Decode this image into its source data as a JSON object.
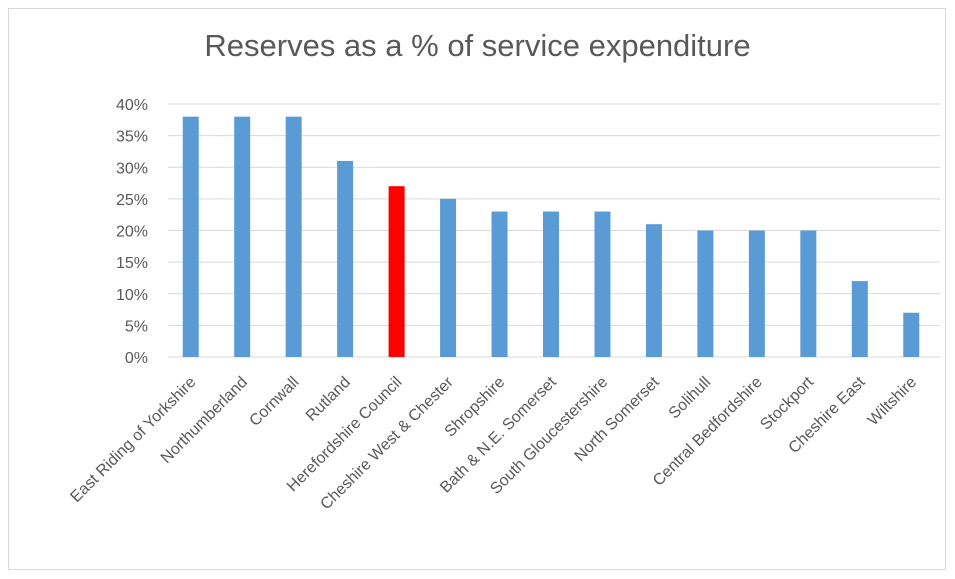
{
  "chart_data": {
    "type": "bar",
    "title": "Reserves as a % of service expenditure",
    "xlabel": "",
    "ylabel": "",
    "ylim": [
      0,
      40
    ],
    "yticks": [
      "0%",
      "5%",
      "10%",
      "15%",
      "20%",
      "25%",
      "30%",
      "35%",
      "40%"
    ],
    "ytick_values": [
      0,
      5,
      10,
      15,
      20,
      25,
      30,
      35,
      40
    ],
    "grid": true,
    "legend": "none",
    "categories": [
      "East Riding of Yorkshire",
      "Northumberland",
      "Cornwall",
      "Rutland",
      "Herefordshire Council",
      "Cheshire West & Chester",
      "Shropshire",
      "Bath & N.E. Somerset",
      "South Gloucestershire",
      "North Somerset",
      "Solihull",
      "Central Bedfordshire",
      "Stockport",
      "Cheshire East",
      "Wiltshire"
    ],
    "values": [
      38,
      38,
      38,
      31,
      27,
      25,
      23,
      23,
      23,
      21,
      20,
      20,
      20,
      12,
      7
    ],
    "unit": "%",
    "colors": {
      "default": "#5b9bd5",
      "highlight": "#ff0000"
    },
    "highlight_category": "Herefordshire Council"
  }
}
